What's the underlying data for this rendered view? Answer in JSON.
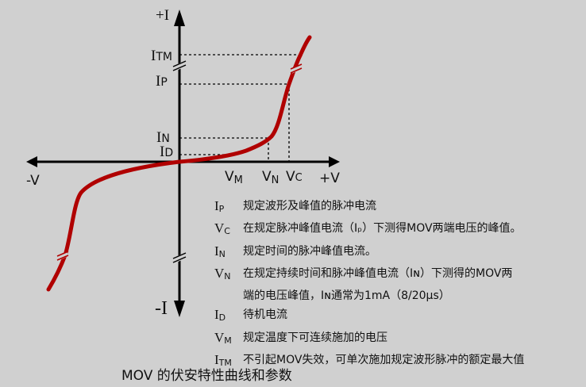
{
  "axes": {
    "plus_i": "+I",
    "minus_i": "-I",
    "plus_v": "+V",
    "minus_v": "-V"
  },
  "y_labels": [
    {
      "main": "I",
      "sub": "TM"
    },
    {
      "main": "I",
      "sub": "P"
    },
    {
      "main": "I",
      "sub": "N"
    },
    {
      "main": "I",
      "sub": "D"
    }
  ],
  "x_labels": [
    {
      "main": "V",
      "sub": "M"
    },
    {
      "main": "V",
      "sub": "N"
    },
    {
      "main": "V",
      "sub": "C"
    }
  ],
  "colors": {
    "curve": "#b00000",
    "axis": "#000000",
    "background": "#d0d0d0"
  },
  "legend": [
    {
      "sym": "I",
      "sub": "P",
      "text": "规定波形及峰值的脉冲电流"
    },
    {
      "sym": "V",
      "sub": "C",
      "text": "在规定脉冲峰值电流（Iₚ）下测得MOV两端电压的峰值。"
    },
    {
      "sym": "I",
      "sub": "N",
      "text": "规定时间的脉冲峰值电流。"
    },
    {
      "sym": "V",
      "sub": "N",
      "text": "在规定持续时间和脉冲峰值电流（Iɴ）下测得的MOV两"
    },
    {
      "sym": "",
      "sub": "",
      "text": "端的电压峰值，Iɴ通常为1mA（8/20μs）"
    },
    {
      "sym": "I",
      "sub": "D",
      "text": "待机电流"
    },
    {
      "sym": "V",
      "sub": "M",
      "text": "规定温度下可连续施加的电压"
    },
    {
      "sym": "I",
      "sub": "TM",
      "text": "不引起MOV失效，可单次施加规定波形脉冲的额定最大值"
    }
  ],
  "caption": "MOV 的伏安特性曲线和参数"
}
